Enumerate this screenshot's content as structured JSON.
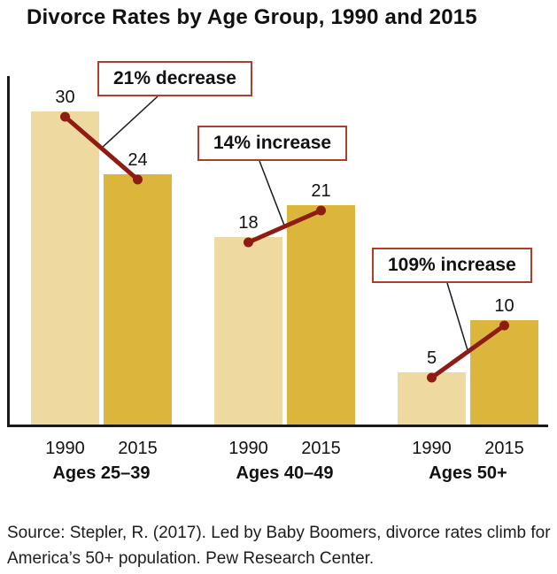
{
  "title": "Divorce Rates by Age Group, 1990 and 2015",
  "source": "Source: Stepler, R. (2017). Led by Baby Boomers, divorce rates climb for America’s 50+ population. Pew Research Center.",
  "chart_data": {
    "type": "bar",
    "title": "Divorce Rates by Age Group, 1990 and 2015",
    "categories": [
      "Ages 25–39",
      "Ages 40–49",
      "Ages 50+"
    ],
    "series": [
      {
        "name": "1990",
        "values": [
          30,
          18,
          5
        ],
        "color": "#eed9a1"
      },
      {
        "name": "2015",
        "values": [
          24,
          21,
          10
        ],
        "color": "#dcb63c"
      }
    ],
    "annotations": [
      "21% decrease",
      "14% increase",
      "109% increase"
    ],
    "ylim": [
      0,
      33
    ],
    "grid": false,
    "legend": "none",
    "xlabel": "",
    "ylabel": "",
    "connector_color": "#8e1c12",
    "annotation_border_color": "#b03d2a",
    "axis_color": "#1a1a1a"
  }
}
